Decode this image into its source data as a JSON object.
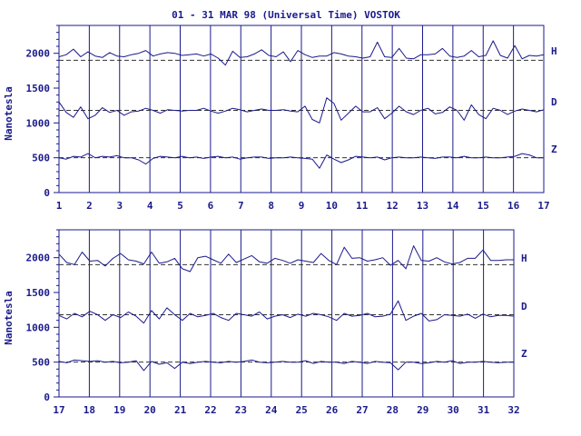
{
  "chart_data": {
    "title": "01 - 31 MAR 98 (Universal Time) VOSTOK",
    "ylabel": "Nanotesla",
    "colors": {
      "axis": "#1a1a8c",
      "trace": "#1a1a8c",
      "text": "#1a1a8c",
      "background": "#ffffff"
    },
    "panels": [
      {
        "type": "line",
        "x_ticks": [
          "1",
          "2",
          "3",
          "4",
          "5",
          "6",
          "7",
          "8",
          "9",
          "10",
          "11",
          "12",
          "13",
          "14",
          "15",
          "16",
          "17"
        ],
        "xlim": [
          1,
          17
        ],
        "ylim": [
          0,
          2400
        ],
        "y_ticks": [
          "0",
          "500",
          "1000",
          "1500",
          "2000"
        ],
        "grid": "vertical day lines",
        "series": [
          {
            "name": "H",
            "baseline": 1900,
            "values": [
              1950,
              1980,
              2060,
              1950,
              2020,
              1960,
              1940,
              2010,
              1960,
              1950,
              1980,
              2000,
              2040,
              1960,
              1990,
              2010,
              2000,
              1970,
              1980,
              1990,
              1960,
              1990,
              1930,
              1830,
              2030,
              1940,
              1950,
              1990,
              2050,
              1970,
              1950,
              2020,
              1880,
              2040,
              1980,
              1940,
              1960,
              1960,
              2010,
              1990,
              1960,
              1950,
              1930,
              1950,
              2160,
              1950,
              1940,
              2070,
              1930,
              1920,
              1980,
              1980,
              1990,
              2070,
              1960,
              1940,
              1960,
              2040,
              1950,
              1970,
              2180,
              1970,
              1930,
              2110,
              1920,
              1970,
              1960,
              1980
            ]
          },
          {
            "name": "D",
            "baseline": 1180,
            "values": [
              1300,
              1150,
              1080,
              1230,
              1060,
              1110,
              1220,
              1150,
              1180,
              1110,
              1160,
              1170,
              1210,
              1180,
              1140,
              1190,
              1180,
              1170,
              1180,
              1180,
              1210,
              1170,
              1140,
              1170,
              1210,
              1190,
              1160,
              1180,
              1200,
              1180,
              1180,
              1190,
              1170,
              1160,
              1240,
              1050,
              1000,
              1360,
              1280,
              1040,
              1140,
              1240,
              1160,
              1160,
              1220,
              1060,
              1140,
              1240,
              1160,
              1120,
              1180,
              1210,
              1130,
              1150,
              1230,
              1180,
              1040,
              1260,
              1120,
              1060,
              1210,
              1180,
              1120,
              1170,
              1200,
              1180,
              1160,
              1190
            ]
          },
          {
            "name": "Z",
            "baseline": 500,
            "values": [
              500,
              480,
              520,
              510,
              560,
              500,
              520,
              510,
              530,
              500,
              500,
              470,
              410,
              490,
              520,
              510,
              500,
              520,
              500,
              510,
              490,
              510,
              520,
              500,
              510,
              480,
              500,
              510,
              510,
              490,
              500,
              500,
              510,
              500,
              490,
              480,
              350,
              540,
              480,
              430,
              470,
              520,
              510,
              500,
              510,
              470,
              500,
              510,
              500,
              500,
              510,
              500,
              490,
              510,
              510,
              500,
              520,
              500,
              500,
              510,
              500,
              500,
              510,
              520,
              560,
              540,
              500,
              500
            ]
          }
        ],
        "series_labels": [
          "H",
          "D",
          "Z"
        ]
      },
      {
        "type": "line",
        "x_ticks": [
          "17",
          "18",
          "19",
          "20",
          "21",
          "22",
          "23",
          "24",
          "25",
          "26",
          "27",
          "28",
          "29",
          "30",
          "31",
          "32"
        ],
        "xlim": [
          17,
          32
        ],
        "ylim": [
          0,
          2400
        ],
        "y_ticks": [
          "0",
          "500",
          "1000",
          "1500",
          "2000"
        ],
        "grid": "vertical day lines",
        "series": [
          {
            "name": "H",
            "baseline": 1900,
            "values": [
              2050,
              1930,
              1900,
              2080,
              1950,
              1960,
              1880,
              1990,
              2060,
              1970,
              1950,
              1910,
              2080,
              1920,
              1940,
              1990,
              1840,
              1800,
              2000,
              2020,
              1970,
              1920,
              2050,
              1930,
              1980,
              2030,
              1940,
              1920,
              1990,
              1960,
              1920,
              1970,
              1950,
              1930,
              2060,
              1960,
              1900,
              2150,
              1990,
              2000,
              1950,
              1970,
              2000,
              1890,
              1960,
              1840,
              2170,
              1960,
              1950,
              2000,
              1940,
              1910,
              1930,
              1990,
              1990,
              2110,
              1960,
              1960,
              1970,
              1970
            ]
          },
          {
            "name": "D",
            "baseline": 1180,
            "values": [
              1170,
              1120,
              1200,
              1150,
              1230,
              1180,
              1100,
              1180,
              1140,
              1220,
              1160,
              1060,
              1240,
              1120,
              1280,
              1180,
              1100,
              1200,
              1150,
              1170,
              1200,
              1140,
              1100,
              1200,
              1180,
              1160,
              1220,
              1120,
              1160,
              1180,
              1140,
              1190,
              1160,
              1200,
              1180,
              1150,
              1100,
              1200,
              1160,
              1170,
              1200,
              1150,
              1160,
              1190,
              1380,
              1100,
              1160,
              1200,
              1090,
              1110,
              1180,
              1170,
              1160,
              1190,
              1130,
              1190,
              1150,
              1170,
              1170,
              1160
            ]
          },
          {
            "name": "Z",
            "baseline": 500,
            "values": [
              510,
              490,
              530,
              520,
              510,
              520,
              500,
              510,
              490,
              500,
              520,
              380,
              510,
              470,
              490,
              410,
              500,
              480,
              500,
              510,
              500,
              490,
              510,
              500,
              510,
              530,
              500,
              490,
              500,
              510,
              500,
              500,
              520,
              480,
              510,
              500,
              500,
              480,
              510,
              500,
              480,
              510,
              500,
              490,
              390,
              500,
              500,
              480,
              490,
              510,
              500,
              520,
              480,
              500,
              500,
              510,
              500,
              490,
              500,
              500
            ]
          }
        ],
        "series_labels": [
          "H",
          "D",
          "Z"
        ]
      }
    ]
  }
}
